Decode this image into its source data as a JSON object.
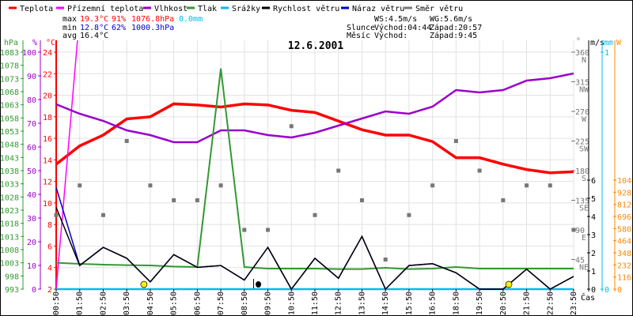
{
  "legend": [
    {
      "label": "Teplota",
      "color": "#ff0000"
    },
    {
      "label": "Přízemní teplota",
      "color": "#ff00ff"
    },
    {
      "label": "Vlhkost",
      "color": "#9900cc"
    },
    {
      "label": "Tlak",
      "color": "#339933"
    },
    {
      "label": "Srážky",
      "color": "#00bbee"
    },
    {
      "label": "Rychlost větru",
      "color": "#000000"
    },
    {
      "label": "Náraz větru",
      "color": "#0000cc"
    },
    {
      "label": "Směr větru",
      "color": "#777777"
    }
  ],
  "stats": {
    "max_label": "max",
    "max_temp": "19.3°C",
    "max_hum": "91%",
    "max_press": "1076.8hPa",
    "max_rain": "0.0mm",
    "min_label": "min",
    "min_temp": "12.8°C",
    "min_hum": "62%",
    "min_press": "1000.3hPa",
    "avg_label": "avg",
    "avg_temp": "16.4°C",
    "ws": "WS:4.5m/s",
    "wg": "WG:5.6m/s",
    "sun_label": "Slunce",
    "sun_rise": "Východ:04:44",
    "sun_set": "Západ:20:57",
    "moon_label": "Měsíc",
    "moon_rise": "Východ:",
    "moon_set": "Západ:9:45"
  },
  "chart_data": {
    "type": "line",
    "title": "12.6.2001",
    "xlabel": "Čas",
    "x": [
      "00:50",
      "01:50",
      "02:50",
      "03:50",
      "04:50",
      "05:50",
      "06:50",
      "07:50",
      "08:50",
      "09:50",
      "10:50",
      "11:50",
      "12:50",
      "13:50",
      "14:50",
      "15:50",
      "16:50",
      "18:50",
      "19:50",
      "20:50",
      "21:50",
      "22:50",
      "23:50"
    ],
    "series": [
      {
        "name": "Teplota",
        "axis": "temp",
        "values": [
          13.6,
          15.3,
          16.3,
          17.8,
          18.0,
          19.2,
          19.1,
          18.9,
          19.2,
          19.1,
          18.6,
          18.4,
          17.6,
          16.8,
          16.3,
          16.3,
          15.7,
          14.2,
          14.2,
          13.6,
          13.1,
          12.8,
          12.9
        ]
      },
      {
        "name": "Přízemní teplota",
        "axis": "temp",
        "values": [
          2.0,
          27.5,
          null,
          null,
          null,
          null,
          null,
          null,
          null,
          null,
          null,
          null,
          null,
          null,
          null,
          null,
          null,
          null,
          null,
          null,
          null,
          null,
          null
        ]
      },
      {
        "name": "Vlhkost",
        "axis": "hum",
        "values": [
          78,
          74,
          71,
          67,
          65,
          62,
          62,
          67,
          67,
          65,
          64,
          66,
          69,
          72,
          75,
          74,
          77,
          84,
          83,
          84,
          88,
          89,
          91
        ]
      },
      {
        "name": "Tlak",
        "axis": "press",
        "values": [
          1003.0,
          1002.6,
          1002.3,
          1002.1,
          1002.0,
          1001.6,
          1001.4,
          1076.8,
          1001.4,
          1000.8,
          1000.8,
          1000.8,
          1000.6,
          1000.6,
          1001.1,
          1000.6,
          1000.8,
          1001.4,
          1000.8,
          1000.8,
          1000.8,
          1000.8,
          1000.8
        ]
      },
      {
        "name": "Srážky",
        "axis": "rain",
        "values": [
          0,
          0,
          0,
          0,
          0,
          0,
          0,
          0,
          0,
          0,
          0,
          0,
          0,
          0,
          0,
          0,
          0,
          0,
          0,
          0,
          0,
          0,
          0
        ]
      },
      {
        "name": "Náraz větru",
        "axis": "wind",
        "values": [
          5.6,
          1.3,
          2.3,
          1.7,
          0.4,
          1.9,
          1.2,
          1.3,
          0.5,
          2.3,
          0,
          1.7,
          0.6,
          2.9,
          0,
          1.3,
          1.4,
          0.9,
          0,
          0,
          1.1,
          0,
          0.7
        ]
      },
      {
        "name": "Rychlost větru",
        "axis": "wind",
        "values": [
          4.5,
          1.3,
          2.3,
          1.7,
          0.4,
          1.9,
          1.2,
          1.3,
          0.5,
          2.3,
          0,
          1.7,
          0.6,
          2.9,
          0,
          1.3,
          1.4,
          0.9,
          0,
          0,
          1.1,
          0,
          0.7
        ]
      },
      {
        "name": "Směr větru",
        "axis": "dir",
        "values": [
          112.5,
          157.5,
          112.5,
          225,
          157.5,
          135,
          135,
          157.5,
          90,
          90,
          247.5,
          112.5,
          180,
          135,
          45,
          112.5,
          157.5,
          225,
          180,
          135,
          157.5,
          157.5,
          90
        ]
      }
    ],
    "axes": {
      "press": {
        "unit": "hPa",
        "range": [
          993,
          1083
        ],
        "ticks": [
          993,
          998,
          1003,
          1008,
          1013,
          1018,
          1023,
          1028,
          1033,
          1038,
          1043,
          1048,
          1053,
          1058,
          1063,
          1068,
          1073,
          1078,
          1083
        ]
      },
      "hum": {
        "unit": "%",
        "range": [
          0,
          100
        ],
        "ticks": [
          0,
          10,
          20,
          30,
          40,
          50,
          60,
          70,
          80,
          90,
          100
        ]
      },
      "temp": {
        "unit": "°C",
        "range": [
          2,
          24
        ],
        "ticks": [
          2,
          4,
          6,
          8,
          10,
          12,
          14,
          16,
          18,
          20,
          22,
          24
        ]
      },
      "dir": {
        "unit": "°",
        "range": [
          0,
          360
        ],
        "ticks": [
          45,
          90,
          135,
          180,
          225,
          270,
          315,
          360
        ],
        "compass": [
          "NE",
          "E",
          "SE",
          "S",
          "SW",
          "W",
          "NW",
          "N"
        ]
      },
      "wind": {
        "unit": "m/s",
        "range": [
          0,
          6
        ],
        "ticks": [
          0,
          1,
          2,
          3,
          4,
          5,
          6
        ]
      },
      "rain": {
        "unit": "mm",
        "range": [
          0,
          1
        ],
        "ticks": [
          0,
          1
        ]
      },
      "solar": {
        "unit": "W",
        "range": [
          0,
          1044
        ],
        "ticks": [
          0,
          116,
          232,
          348,
          464,
          580,
          696,
          812,
          928,
          1044
        ]
      }
    },
    "events": [
      {
        "type": "sunrise",
        "time": "04:44"
      },
      {
        "type": "moonset",
        "time": "9:45"
      },
      {
        "type": "sunset",
        "time": "20:57"
      }
    ],
    "grid": true
  }
}
